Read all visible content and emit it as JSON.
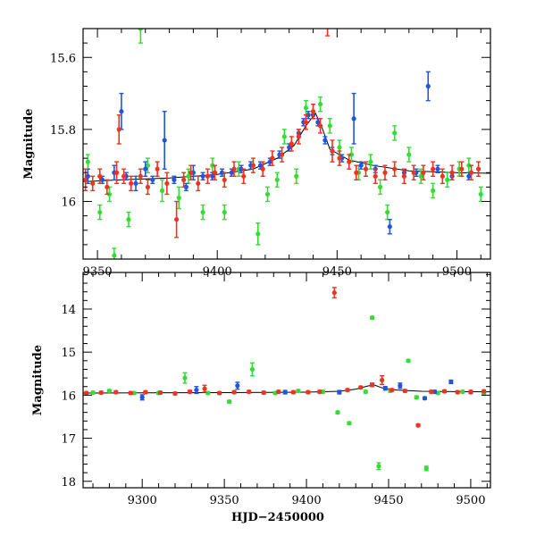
{
  "chart_data": [
    {
      "type": "scatter",
      "panel": "top",
      "title": "",
      "xlabel": "",
      "ylabel": "Magnitude",
      "xlim": [
        9344,
        9514
      ],
      "ylim": [
        16.16,
        15.52
      ],
      "xticks": [
        9350,
        9400,
        9450,
        9500
      ],
      "yticks": [
        15.6,
        15.8,
        16
      ],
      "model_curve": [
        [
          9344,
          15.945
        ],
        [
          9360,
          15.94
        ],
        [
          9380,
          15.935
        ],
        [
          9400,
          15.925
        ],
        [
          9415,
          15.91
        ],
        [
          9425,
          15.88
        ],
        [
          9432,
          15.845
        ],
        [
          9437,
          15.79
        ],
        [
          9441,
          15.755
        ],
        [
          9444,
          15.8
        ],
        [
          9447,
          15.855
        ],
        [
          9455,
          15.885
        ],
        [
          9465,
          15.9
        ],
        [
          9480,
          15.915
        ],
        [
          9500,
          15.92
        ],
        [
          9514,
          15.922
        ]
      ],
      "series": [
        {
          "name": "Blue data",
          "color": "#2255dd",
          "points": [
            [
              9346,
              15.93,
              0.02
            ],
            [
              9352,
              15.94,
              0.01
            ],
            [
              9357,
              15.92,
              0.02
            ],
            [
              9360,
              15.75,
              0.05
            ],
            [
              9362,
              15.93,
              0.01
            ],
            [
              9366,
              15.95,
              0.02
            ],
            [
              9370,
              15.91,
              0.02
            ],
            [
              9373,
              15.94,
              0.01
            ],
            [
              9378,
              15.83,
              0.08
            ],
            [
              9382,
              15.94,
              0.01
            ],
            [
              9387,
              15.96,
              0.01
            ],
            [
              9390,
              15.92,
              0.02
            ],
            [
              9394,
              15.93,
              0.01
            ],
            [
              9398,
              15.93,
              0.01
            ],
            [
              9402,
              15.92,
              0.01
            ],
            [
              9406,
              15.92,
              0.01
            ],
            [
              9410,
              15.91,
              0.01
            ],
            [
              9414,
              15.9,
              0.01
            ],
            [
              9418,
              15.9,
              0.01
            ],
            [
              9422,
              15.89,
              0.01
            ],
            [
              9426,
              15.87,
              0.01
            ],
            [
              9430,
              15.85,
              0.01
            ],
            [
              9434,
              15.81,
              0.01
            ],
            [
              9436,
              15.78,
              0.01
            ],
            [
              9438,
              15.76,
              0.01
            ],
            [
              9440,
              15.76,
              0.01
            ],
            [
              9442,
              15.78,
              0.01
            ],
            [
              9445,
              15.83,
              0.01
            ],
            [
              9448,
              15.86,
              0.01
            ],
            [
              9452,
              15.88,
              0.01
            ],
            [
              9457,
              15.77,
              0.07
            ],
            [
              9460,
              15.9,
              0.01
            ],
            [
              9466,
              15.91,
              0.01
            ],
            [
              9472,
              16.07,
              0.02
            ],
            [
              9478,
              15.92,
              0.01
            ],
            [
              9483,
              15.92,
              0.01
            ],
            [
              9488,
              15.68,
              0.04
            ],
            [
              9492,
              15.91,
              0.01
            ],
            [
              9498,
              15.93,
              0.01
            ],
            [
              9505,
              15.93,
              0.01
            ]
          ]
        },
        {
          "name": "Red data",
          "color": "#ee3322",
          "points": [
            [
              9345,
              15.94,
              0.03
            ],
            [
              9348,
              15.95,
              0.02
            ],
            [
              9351,
              15.93,
              0.02
            ],
            [
              9354,
              15.96,
              0.02
            ],
            [
              9358,
              15.92,
              0.03
            ],
            [
              9359,
              15.8,
              0.04
            ],
            [
              9361,
              15.93,
              0.02
            ],
            [
              9364,
              15.95,
              0.02
            ],
            [
              9368,
              15.93,
              0.02
            ],
            [
              9371,
              15.96,
              0.02
            ],
            [
              9375,
              15.91,
              0.02
            ],
            [
              9379,
              15.95,
              0.03
            ],
            [
              9383,
              16.05,
              0.05
            ],
            [
              9386,
              15.94,
              0.02
            ],
            [
              9389,
              15.92,
              0.02
            ],
            [
              9392,
              15.95,
              0.02
            ],
            [
              9396,
              15.93,
              0.02
            ],
            [
              9399,
              15.92,
              0.02
            ],
            [
              9403,
              15.94,
              0.02
            ],
            [
              9407,
              15.91,
              0.02
            ],
            [
              9411,
              15.93,
              0.02
            ],
            [
              9415,
              15.9,
              0.02
            ],
            [
              9419,
              15.91,
              0.02
            ],
            [
              9423,
              15.88,
              0.02
            ],
            [
              9427,
              15.87,
              0.02
            ],
            [
              9431,
              15.84,
              0.02
            ],
            [
              9434,
              15.82,
              0.02
            ],
            [
              9437,
              15.78,
              0.02
            ],
            [
              9440,
              15.75,
              0.02
            ],
            [
              9443,
              15.79,
              0.02
            ],
            [
              9446,
              15.46,
              0.08
            ],
            [
              9448,
              15.86,
              0.03
            ],
            [
              9451,
              15.88,
              0.02
            ],
            [
              9455,
              15.89,
              0.02
            ],
            [
              9458,
              15.92,
              0.02
            ],
            [
              9462,
              15.91,
              0.02
            ],
            [
              9466,
              15.93,
              0.02
            ],
            [
              9470,
              15.92,
              0.02
            ],
            [
              9474,
              15.91,
              0.02
            ],
            [
              9478,
              15.93,
              0.02
            ],
            [
              9482,
              15.92,
              0.02
            ],
            [
              9486,
              15.92,
              0.02
            ],
            [
              9490,
              15.91,
              0.02
            ],
            [
              9494,
              15.93,
              0.02
            ],
            [
              9498,
              15.92,
              0.02
            ],
            [
              9502,
              15.91,
              0.02
            ],
            [
              9506,
              15.92,
              0.02
            ],
            [
              9509,
              15.91,
              0.02
            ]
          ]
        },
        {
          "name": "Green data",
          "color": "#33dd33",
          "points": [
            [
              9346,
              15.89,
              0.02
            ],
            [
              9351,
              16.03,
              0.02
            ],
            [
              9355,
              15.98,
              0.02
            ],
            [
              9357,
              16.15,
              0.02
            ],
            [
              9363,
              16.05,
              0.02
            ],
            [
              9368,
              15.52,
              0.04
            ],
            [
              9371,
              15.9,
              0.02
            ],
            [
              9377,
              15.97,
              0.03
            ],
            [
              9384,
              15.99,
              0.03
            ],
            [
              9388,
              15.93,
              0.02
            ],
            [
              9394,
              16.03,
              0.02
            ],
            [
              9398,
              15.9,
              0.02
            ],
            [
              9403,
              16.03,
              0.02
            ],
            [
              9409,
              15.91,
              0.02
            ],
            [
              9417,
              16.09,
              0.03
            ],
            [
              9421,
              15.98,
              0.02
            ],
            [
              9425,
              15.94,
              0.02
            ],
            [
              9428,
              15.82,
              0.02
            ],
            [
              9433,
              15.93,
              0.02
            ],
            [
              9437,
              15.74,
              0.02
            ],
            [
              9443,
              15.73,
              0.02
            ],
            [
              9447,
              15.79,
              0.02
            ],
            [
              9451,
              15.85,
              0.02
            ],
            [
              9456,
              15.87,
              0.02
            ],
            [
              9459,
              15.92,
              0.02
            ],
            [
              9464,
              15.89,
              0.02
            ],
            [
              9468,
              15.96,
              0.02
            ],
            [
              9471,
              16.03,
              0.02
            ],
            [
              9474,
              15.81,
              0.02
            ],
            [
              9480,
              15.87,
              0.02
            ],
            [
              9485,
              15.93,
              0.02
            ],
            [
              9490,
              15.97,
              0.02
            ],
            [
              9496,
              15.94,
              0.02
            ],
            [
              9501,
              15.91,
              0.02
            ],
            [
              9505,
              15.9,
              0.02
            ],
            [
              9510,
              15.98,
              0.02
            ]
          ]
        }
      ]
    },
    {
      "type": "scatter",
      "panel": "bottom",
      "title": "",
      "xlabel": "HJD−2450000",
      "ylabel": "Magnitude",
      "xlim": [
        9264,
        9512
      ],
      "ylim": [
        18.15,
        13.15
      ],
      "xticks": [
        9300,
        9350,
        9400,
        9450,
        9500
      ],
      "yticks": [
        14,
        15,
        16,
        17,
        18
      ],
      "model_curve": [
        [
          9264,
          15.95
        ],
        [
          9300,
          15.945
        ],
        [
          9350,
          15.94
        ],
        [
          9400,
          15.93
        ],
        [
          9420,
          15.91
        ],
        [
          9430,
          15.86
        ],
        [
          9437,
          15.79
        ],
        [
          9441,
          15.76
        ],
        [
          9446,
          15.83
        ],
        [
          9455,
          15.88
        ],
        [
          9470,
          15.91
        ],
        [
          9500,
          15.92
        ],
        [
          9512,
          15.922
        ]
      ],
      "series": [
        {
          "name": "Blue data",
          "color": "#2255dd",
          "points": [
            [
              9300,
              16.05,
              0.06
            ],
            [
              9333,
              15.88,
              0.08
            ],
            [
              9358,
              15.78,
              0.08
            ],
            [
              9387,
              15.93,
              0.04
            ],
            [
              9420,
              15.93,
              0.04
            ],
            [
              9440,
              15.76,
              0.04
            ],
            [
              9448,
              15.84,
              0.04
            ],
            [
              9457,
              15.78,
              0.06
            ],
            [
              9472,
              16.07,
              0.03
            ],
            [
              9478,
              15.92,
              0.03
            ],
            [
              9488,
              15.69,
              0.04
            ],
            [
              9500,
              15.93,
              0.03
            ]
          ]
        },
        {
          "name": "Red data",
          "color": "#ee3322",
          "points": [
            [
              9266,
              15.95,
              0.03
            ],
            [
              9275,
              15.94,
              0.03
            ],
            [
              9284,
              15.93,
              0.03
            ],
            [
              9293,
              15.95,
              0.03
            ],
            [
              9302,
              15.93,
              0.03
            ],
            [
              9311,
              15.94,
              0.03
            ],
            [
              9320,
              15.96,
              0.03
            ],
            [
              9329,
              15.92,
              0.03
            ],
            [
              9338,
              15.85,
              0.08
            ],
            [
              9347,
              15.95,
              0.03
            ],
            [
              9356,
              15.93,
              0.03
            ],
            [
              9365,
              15.92,
              0.03
            ],
            [
              9374,
              15.94,
              0.03
            ],
            [
              9383,
              15.92,
              0.03
            ],
            [
              9392,
              15.93,
              0.03
            ],
            [
              9401,
              15.93,
              0.03
            ],
            [
              9408,
              15.92,
              0.03
            ],
            [
              9417,
              13.62,
              0.12
            ],
            [
              9425,
              15.88,
              0.03
            ],
            [
              9433,
              15.82,
              0.03
            ],
            [
              9440,
              15.76,
              0.03
            ],
            [
              9446,
              15.65,
              0.1
            ],
            [
              9452,
              15.88,
              0.03
            ],
            [
              9460,
              15.9,
              0.03
            ],
            [
              9468,
              16.7,
              0.03
            ],
            [
              9476,
              15.92,
              0.03
            ],
            [
              9484,
              15.91,
              0.03
            ],
            [
              9492,
              15.93,
              0.03
            ],
            [
              9500,
              15.92,
              0.03
            ],
            [
              9508,
              15.91,
              0.03
            ]
          ]
        },
        {
          "name": "Green data",
          "color": "#33dd33",
          "points": [
            [
              9270,
              15.94,
              0.03
            ],
            [
              9280,
              15.9,
              0.03
            ],
            [
              9295,
              15.95,
              0.03
            ],
            [
              9310,
              15.95,
              0.03
            ],
            [
              9326,
              15.6,
              0.12
            ],
            [
              9340,
              15.95,
              0.03
            ],
            [
              9353,
              16.15,
              0.03
            ],
            [
              9367,
              15.4,
              0.15
            ],
            [
              9381,
              15.95,
              0.03
            ],
            [
              9395,
              15.9,
              0.03
            ],
            [
              9410,
              15.92,
              0.03
            ],
            [
              9419,
              16.4,
              0.03
            ],
            [
              9426,
              16.65,
              0.03
            ],
            [
              9436,
              15.92,
              0.03
            ],
            [
              9440,
              14.2,
              0.03
            ],
            [
              9444,
              17.65,
              0.08
            ],
            [
              9451,
              15.9,
              0.03
            ],
            [
              9462,
              15.2,
              0.03
            ],
            [
              9467,
              16.05,
              0.03
            ],
            [
              9473,
              17.7,
              0.05
            ],
            [
              9480,
              15.95,
              0.03
            ],
            [
              9495,
              15.92,
              0.03
            ],
            [
              9508,
              15.96,
              0.03
            ]
          ]
        }
      ]
    }
  ]
}
